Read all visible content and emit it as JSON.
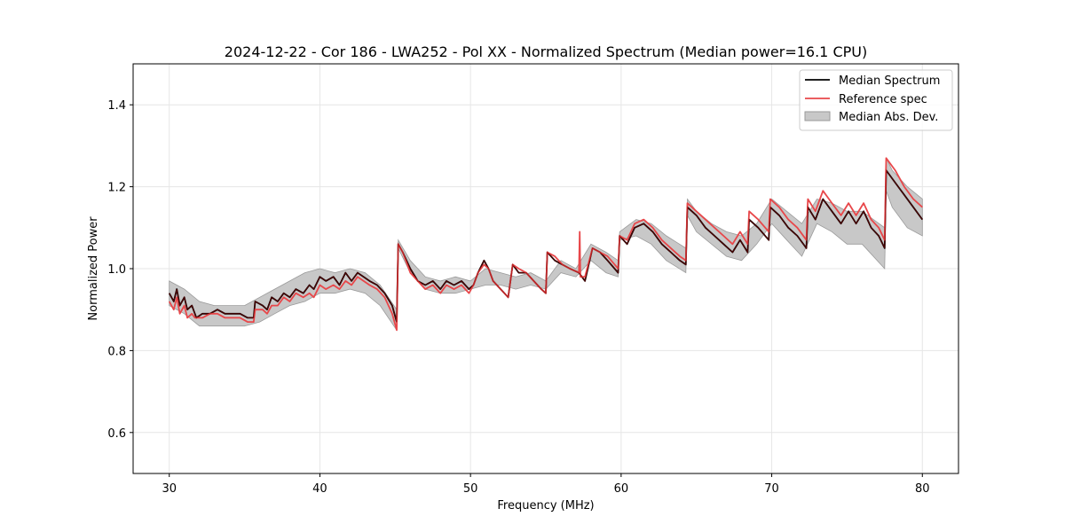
{
  "chart_data": {
    "type": "line",
    "title": "2024-12-22 - Cor 186 - LWA252 - Pol XX - Normalized Spectrum (Median power=16.1 CPU)",
    "xlabel": "Frequency (MHz)",
    "ylabel": "Normalized Power",
    "xlim": [
      27.6,
      82.4
    ],
    "ylim": [
      0.5,
      1.5
    ],
    "xticks": [
      30,
      40,
      50,
      60,
      70,
      80
    ],
    "yticks": [
      0.6,
      0.8,
      1.0,
      1.2,
      1.4
    ],
    "xtick_labels": [
      "30",
      "40",
      "50",
      "60",
      "70",
      "80"
    ],
    "ytick_labels": [
      "0.6",
      "0.8",
      "1.0",
      "1.2",
      "1.4"
    ],
    "grid": true,
    "legend_position": "top-right",
    "colors": {
      "median": "#000000",
      "reference": "#e8474a",
      "mad_fill": "#c8c8c8",
      "mad_edge": "#9a9a9a",
      "overlap": "#8b0000"
    },
    "series": [
      {
        "name": "Median Spectrum",
        "x": [
          30.0,
          30.3,
          30.5,
          30.7,
          31.0,
          31.2,
          31.5,
          31.7,
          31.8,
          32.2,
          32.7,
          33.2,
          33.7,
          34.2,
          34.7,
          35.2,
          35.6,
          35.7,
          36.2,
          36.5,
          36.8,
          37.2,
          37.6,
          38.0,
          38.4,
          38.9,
          39.3,
          39.6,
          40.0,
          40.4,
          40.9,
          41.3,
          41.7,
          42.1,
          42.5,
          42.9,
          43.3,
          43.8,
          44.3,
          44.8,
          45.1,
          45.2,
          45.5,
          46.0,
          46.5,
          47.0,
          47.5,
          48.0,
          48.4,
          48.9,
          49.4,
          49.9,
          50.2,
          50.5,
          50.9,
          51.2,
          51.5,
          52.0,
          52.5,
          52.8,
          53.2,
          53.7,
          54.2,
          54.7,
          55.0,
          55.1,
          55.6,
          56.1,
          56.6,
          57.2,
          57.6,
          58.1,
          58.6,
          59.1,
          59.8,
          59.9,
          60.4,
          60.9,
          61.5,
          62.1,
          62.7,
          63.3,
          63.9,
          64.3,
          64.4,
          65.0,
          65.6,
          66.2,
          66.8,
          67.4,
          67.9,
          68.4,
          68.5,
          69.1,
          69.8,
          69.9,
          70.5,
          71.1,
          71.7,
          72.3,
          72.4,
          72.9,
          73.4,
          74.0,
          74.6,
          75.1,
          75.6,
          76.1,
          76.6,
          77.1,
          77.5,
          77.6,
          78.2,
          78.8,
          79.4,
          80.0
        ],
        "y": [
          0.94,
          0.92,
          0.95,
          0.91,
          0.93,
          0.9,
          0.91,
          0.89,
          0.88,
          0.89,
          0.89,
          0.9,
          0.89,
          0.89,
          0.89,
          0.88,
          0.88,
          0.92,
          0.91,
          0.9,
          0.93,
          0.92,
          0.94,
          0.93,
          0.95,
          0.94,
          0.96,
          0.95,
          0.98,
          0.97,
          0.98,
          0.96,
          0.99,
          0.97,
          0.99,
          0.98,
          0.97,
          0.96,
          0.94,
          0.91,
          0.87,
          1.06,
          1.04,
          1.0,
          0.97,
          0.96,
          0.97,
          0.95,
          0.97,
          0.96,
          0.97,
          0.95,
          0.96,
          0.99,
          1.02,
          1.0,
          0.97,
          0.95,
          0.93,
          1.01,
          0.99,
          0.99,
          0.97,
          0.95,
          0.94,
          1.04,
          1.02,
          1.01,
          1.0,
          0.99,
          0.97,
          1.05,
          1.04,
          1.02,
          0.99,
          1.08,
          1.06,
          1.1,
          1.11,
          1.09,
          1.06,
          1.04,
          1.02,
          1.01,
          1.15,
          1.13,
          1.1,
          1.08,
          1.06,
          1.04,
          1.07,
          1.04,
          1.12,
          1.1,
          1.07,
          1.15,
          1.13,
          1.1,
          1.08,
          1.05,
          1.15,
          1.12,
          1.17,
          1.14,
          1.11,
          1.14,
          1.11,
          1.14,
          1.1,
          1.08,
          1.05,
          1.24,
          1.21,
          1.18,
          1.15,
          1.12
        ]
      },
      {
        "name": "Reference spec",
        "x": [
          30.0,
          30.3,
          30.5,
          30.7,
          31.0,
          31.2,
          31.5,
          31.7,
          31.8,
          32.2,
          32.7,
          33.2,
          33.7,
          34.2,
          34.7,
          35.2,
          35.6,
          35.7,
          36.2,
          36.5,
          36.8,
          37.2,
          37.6,
          38.0,
          38.4,
          38.9,
          39.3,
          39.6,
          40.0,
          40.4,
          40.9,
          41.3,
          41.7,
          42.1,
          42.5,
          42.9,
          43.3,
          43.8,
          44.3,
          44.8,
          45.1,
          45.2,
          45.5,
          46.0,
          46.5,
          47.0,
          47.5,
          48.0,
          48.4,
          48.9,
          49.4,
          49.9,
          50.2,
          50.5,
          50.9,
          51.2,
          51.5,
          52.0,
          52.5,
          52.8,
          53.2,
          53.7,
          54.2,
          54.7,
          55.0,
          55.1,
          55.6,
          56.1,
          56.6,
          57.2,
          57.25,
          57.3,
          57.6,
          58.1,
          58.6,
          59.1,
          59.8,
          59.9,
          60.4,
          60.9,
          61.5,
          62.1,
          62.7,
          63.3,
          63.9,
          64.3,
          64.4,
          65.0,
          65.6,
          66.2,
          66.8,
          67.4,
          67.9,
          68.4,
          68.5,
          69.1,
          69.8,
          69.9,
          70.5,
          71.1,
          71.7,
          72.3,
          72.4,
          72.9,
          73.4,
          74.0,
          74.6,
          75.1,
          75.6,
          76.1,
          76.6,
          77.1,
          77.5,
          77.6,
          78.2,
          78.8,
          79.4,
          80.0
        ],
        "y": [
          0.92,
          0.9,
          0.93,
          0.89,
          0.91,
          0.88,
          0.89,
          0.88,
          0.88,
          0.88,
          0.89,
          0.89,
          0.88,
          0.88,
          0.88,
          0.87,
          0.87,
          0.9,
          0.9,
          0.89,
          0.91,
          0.91,
          0.93,
          0.92,
          0.94,
          0.93,
          0.94,
          0.93,
          0.96,
          0.95,
          0.96,
          0.95,
          0.97,
          0.96,
          0.98,
          0.97,
          0.96,
          0.95,
          0.93,
          0.89,
          0.85,
          1.06,
          1.04,
          0.99,
          0.97,
          0.95,
          0.96,
          0.94,
          0.96,
          0.95,
          0.96,
          0.94,
          0.96,
          0.99,
          1.01,
          1.0,
          0.97,
          0.95,
          0.93,
          1.01,
          1.0,
          0.99,
          0.97,
          0.95,
          0.94,
          1.04,
          1.03,
          1.01,
          1.0,
          0.99,
          1.09,
          0.98,
          0.98,
          1.05,
          1.04,
          1.03,
          1.0,
          1.08,
          1.07,
          1.11,
          1.12,
          1.1,
          1.07,
          1.05,
          1.03,
          1.02,
          1.16,
          1.14,
          1.12,
          1.1,
          1.08,
          1.06,
          1.09,
          1.06,
          1.14,
          1.12,
          1.09,
          1.17,
          1.15,
          1.12,
          1.1,
          1.07,
          1.17,
          1.14,
          1.19,
          1.16,
          1.13,
          1.16,
          1.13,
          1.16,
          1.12,
          1.1,
          1.07,
          1.27,
          1.24,
          1.2,
          1.17,
          1.15
        ]
      },
      {
        "name": "Median Abs. Dev.",
        "type": "band",
        "x": [
          30.0,
          31.0,
          32.0,
          33.0,
          34.0,
          35.0,
          36.0,
          37.0,
          38.0,
          39.0,
          40.0,
          41.0,
          42.0,
          43.0,
          44.0,
          45.1,
          45.2,
          46.0,
          47.0,
          48.0,
          49.0,
          50.0,
          51.0,
          52.0,
          53.0,
          54.0,
          55.0,
          56.0,
          57.0,
          58.0,
          59.0,
          59.8,
          59.9,
          61.0,
          62.0,
          63.0,
          64.3,
          64.4,
          65.0,
          66.0,
          67.0,
          68.0,
          69.0,
          70.0,
          71.0,
          72.0,
          73.0,
          74.0,
          75.0,
          76.0,
          77.5,
          77.6,
          78.0,
          79.0,
          80.0
        ],
        "lower": [
          0.91,
          0.89,
          0.86,
          0.86,
          0.86,
          0.86,
          0.87,
          0.89,
          0.91,
          0.92,
          0.94,
          0.94,
          0.95,
          0.94,
          0.91,
          0.85,
          1.05,
          0.99,
          0.95,
          0.94,
          0.94,
          0.95,
          0.96,
          0.96,
          0.95,
          0.96,
          0.95,
          0.99,
          0.98,
          1.02,
          0.99,
          0.98,
          1.07,
          1.08,
          1.06,
          1.02,
          0.99,
          1.13,
          1.09,
          1.06,
          1.03,
          1.02,
          1.06,
          1.11,
          1.07,
          1.03,
          1.11,
          1.09,
          1.06,
          1.06,
          1.0,
          1.19,
          1.15,
          1.1,
          1.08
        ],
        "upper": [
          0.97,
          0.95,
          0.92,
          0.91,
          0.91,
          0.91,
          0.93,
          0.95,
          0.97,
          0.99,
          1.0,
          0.99,
          1.0,
          0.99,
          0.96,
          0.9,
          1.07,
          1.02,
          0.98,
          0.97,
          0.98,
          0.97,
          1.0,
          0.99,
          0.98,
          0.99,
          0.97,
          1.02,
          1.0,
          1.06,
          1.04,
          1.02,
          1.09,
          1.12,
          1.11,
          1.08,
          1.05,
          1.17,
          1.14,
          1.11,
          1.09,
          1.08,
          1.11,
          1.17,
          1.14,
          1.11,
          1.17,
          1.16,
          1.14,
          1.14,
          1.1,
          1.27,
          1.24,
          1.2,
          1.17
        ]
      }
    ],
    "legend": [
      "Median Spectrum",
      "Reference spec",
      "Median Abs. Dev."
    ]
  }
}
